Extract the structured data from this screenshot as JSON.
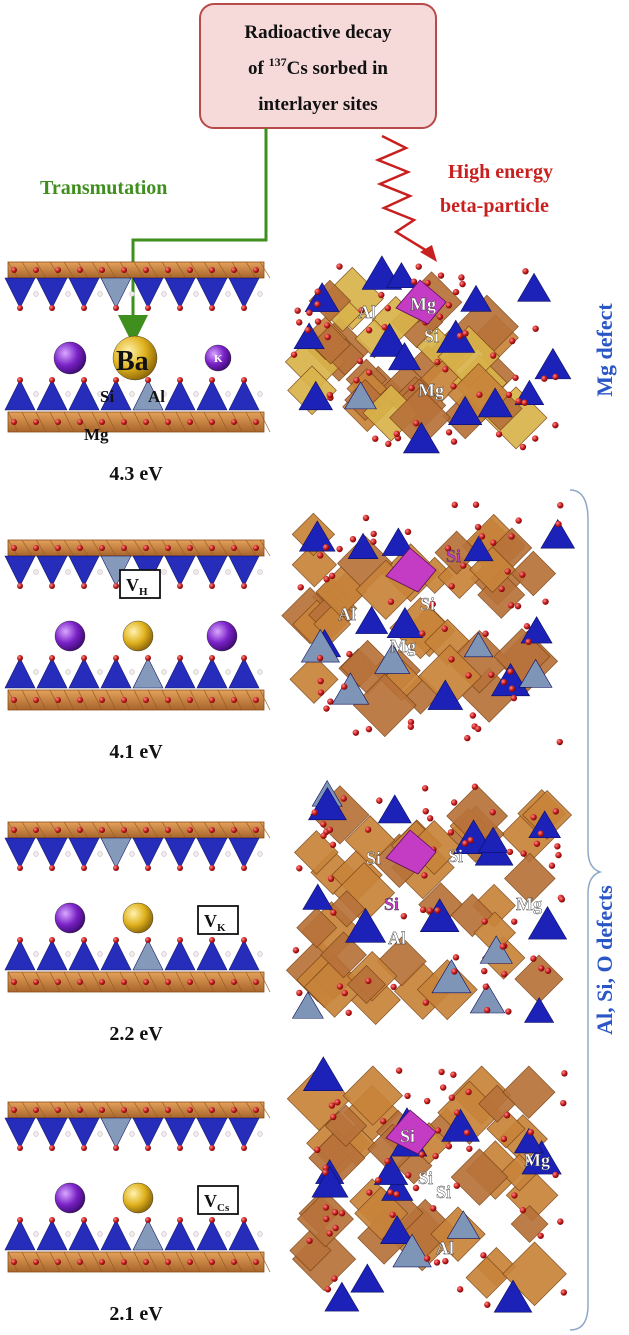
{
  "callout": {
    "line1": "Radioactive decay",
    "line2_prefix": "of ",
    "line2_sup": "137",
    "line2_suffix": "Cs sorbed in",
    "line3": "interlayer sites"
  },
  "labels": {
    "transmutation": "Transmutation",
    "high_energy_1": "High energy",
    "high_energy_2": "beta-particle",
    "mg_defect": "Mg defect",
    "alsio_defects": "Al, Si, O defects"
  },
  "panels": [
    {
      "energy": "4.3 eV",
      "vacancy_main": "",
      "vacancy_sub": "",
      "layer_labels": [
        "Ba",
        "K",
        "Si",
        "Al",
        "Mg"
      ],
      "cluster_labels": [
        "Al",
        "Mg",
        "Si",
        "Mg"
      ]
    },
    {
      "energy": "4.1 eV",
      "vacancy_main": "V",
      "vacancy_sub": "H",
      "layer_labels": [],
      "cluster_labels": [
        "Si",
        "Al",
        "Si",
        "Mg"
      ]
    },
    {
      "energy": "2.2 eV",
      "vacancy_main": "V",
      "vacancy_sub": "K",
      "layer_labels": [],
      "cluster_labels": [
        "Si",
        "Si",
        "Si",
        "Al",
        "Mg"
      ]
    },
    {
      "energy": "2.1 eV",
      "vacancy_main": "V",
      "vacancy_sub": "Cs",
      "layer_labels": [],
      "cluster_labels": [
        "Si",
        "Si",
        "Si",
        "Al",
        "Mg"
      ]
    }
  ],
  "colors": {
    "box_fill": "#f6dada",
    "box_stroke": "#b84a4a",
    "green": "#3f8f1f",
    "red": "#c8201f",
    "blue_label": "#2a56c6",
    "tetra_blue": "#1c22b8",
    "tetra_light": "#7f95b8",
    "octa_orange": "#c8843a",
    "oxygen": "#c01818",
    "k_purple": "#7a22c8",
    "cs_gold": "#e0b21e",
    "mg_magenta": "#c33cc3"
  }
}
